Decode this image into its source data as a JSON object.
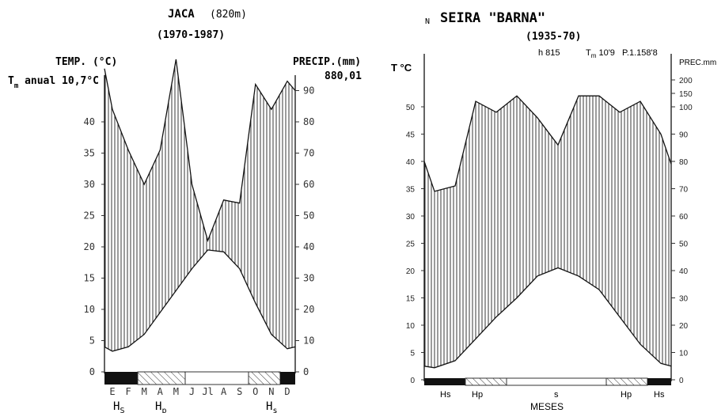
{
  "chart_data": [
    {
      "type": "line",
      "title": "JACA",
      "title_alt": "(820m)",
      "subtitle": "(1970-1987)",
      "ylabel_left": "TEMP. (°C)",
      "ylabel_right": "PRECIP.(mm)",
      "annotation_left": "T",
      "annotation_left_sub": "m",
      "annotation_left_rest": " anual 10,7°C",
      "annotation_right": "880,01",
      "ylim_temp": [
        0,
        45
      ],
      "ylim_precip": [
        0,
        90
      ],
      "yticks_temp": [
        "0",
        "5",
        "10",
        "15",
        "20",
        "25",
        "30",
        "35",
        "40"
      ],
      "yticks_precip": [
        "0",
        "10",
        "20",
        "30",
        "40",
        "50",
        "60",
        "70",
        "80",
        "90"
      ],
      "month_labels": [
        "E",
        "F",
        "M",
        "A",
        "M",
        "J",
        "Jl",
        "A",
        "S",
        "O",
        "N",
        "D"
      ],
      "x": [
        0,
        0.5,
        1.5,
        2.5,
        3.5,
        4.5,
        5.5,
        6.5,
        7.5,
        8.5,
        9.5,
        10.5,
        11.5,
        12
      ],
      "series": [
        {
          "name": "Temperature",
          "values": [
            4,
            3.3,
            4,
            6,
            9.5,
            13,
            16.5,
            19.5,
            19.2,
            16.5,
            11,
            6,
            3.7,
            4
          ]
        },
        {
          "name": "Precipitation",
          "values": [
            97,
            84,
            71,
            60,
            71,
            100,
            60,
            42,
            55,
            54,
            92,
            84,
            93,
            90
          ]
        }
      ],
      "period_labels": [
        {
          "main": "H",
          "sub": "S"
        },
        {
          "main": "H",
          "sub": "p"
        },
        {
          "main": "H",
          "sub": "s"
        }
      ],
      "period_bar": [
        "solid",
        "hatched",
        "open",
        "hatched",
        "solid"
      ]
    },
    {
      "type": "line",
      "title_prefix": "N",
      "title": "SEIRA \"BARNA\"",
      "subtitle": "(1935-70)",
      "info_h": "h 815",
      "info_tm": "T",
      "info_tm_sub": "m",
      "info_tm_val": " 10'9",
      "info_p": "P.1.158'8",
      "ylabel_left": "T °C",
      "ylabel_right": "PREC.mm",
      "xlabel": "MESES",
      "ylim_temp": [
        0,
        50
      ],
      "ylim_precip": [
        0,
        100
      ],
      "yticks_temp": [
        "0",
        "5",
        "10",
        "15",
        "20",
        "25",
        "30",
        "35",
        "40",
        "45",
        "50"
      ],
      "yticks_precip": [
        "0",
        "10",
        "20",
        "30",
        "40",
        "50",
        "60",
        "70",
        "80",
        "90",
        "100",
        "150",
        "200"
      ],
      "x": [
        0,
        0.5,
        1.5,
        2.5,
        3.5,
        4.5,
        5.5,
        6.5,
        7.5,
        8.5,
        9.5,
        10.5,
        11.5,
        12
      ],
      "series": [
        {
          "name": "Temperature",
          "values": [
            2.5,
            2.2,
            3.5,
            7.5,
            11.5,
            15,
            19,
            20.5,
            19,
            16.5,
            11.5,
            6.5,
            3,
            2.5
          ]
        },
        {
          "name": "Precipitation",
          "values": [
            80,
            69,
            71,
            102,
            98,
            104,
            96,
            86,
            104,
            104,
            98,
            102,
            90,
            79
          ]
        }
      ],
      "period_labels": [
        "Hs",
        "Hp",
        "s",
        "Hp",
        "Hs"
      ],
      "period_bar": [
        "solid",
        "hatched",
        "open",
        "hatched",
        "solid"
      ]
    }
  ]
}
